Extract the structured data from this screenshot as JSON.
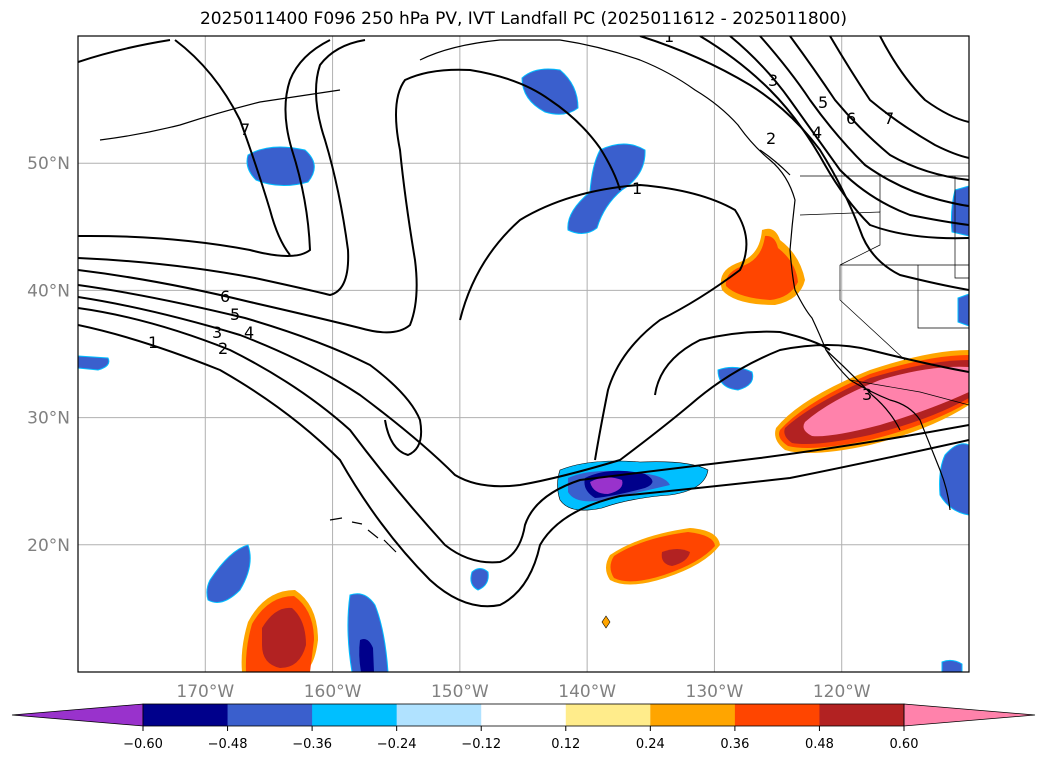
{
  "title": "2025011400 F096 250 hPa PV, IVT Landfall PC (2025011612 - 2025011800)",
  "map": {
    "lon_range": [
      -180,
      -110
    ],
    "lat_range": [
      10,
      60
    ],
    "lat_labels": [
      "20°N",
      "30°N",
      "40°N",
      "50°N"
    ],
    "lon_labels": [
      "170°W",
      "160°W",
      "150°W",
      "140°W",
      "130°W",
      "120°W"
    ],
    "gridlines": true
  },
  "pv_contour_labels": [
    "1",
    "2",
    "3",
    "4",
    "5",
    "6",
    "7",
    "1",
    "2",
    "3",
    "4",
    "5",
    "6",
    "7",
    "1",
    "3"
  ],
  "colorbar": {
    "ticks": [
      "−0.60",
      "−0.48",
      "−0.36",
      "−0.24",
      "−0.12",
      "0.12",
      "0.24",
      "0.36",
      "0.48",
      "0.60"
    ],
    "colors": [
      "#9932cc",
      "#00008b",
      "#3a5fcd",
      "#00bfff",
      "#b0e2ff",
      "#ffffff",
      "#ffec8b",
      "#ffa500",
      "#ff4500",
      "#b22222",
      "#ff82ab"
    ],
    "extend": "both"
  }
}
